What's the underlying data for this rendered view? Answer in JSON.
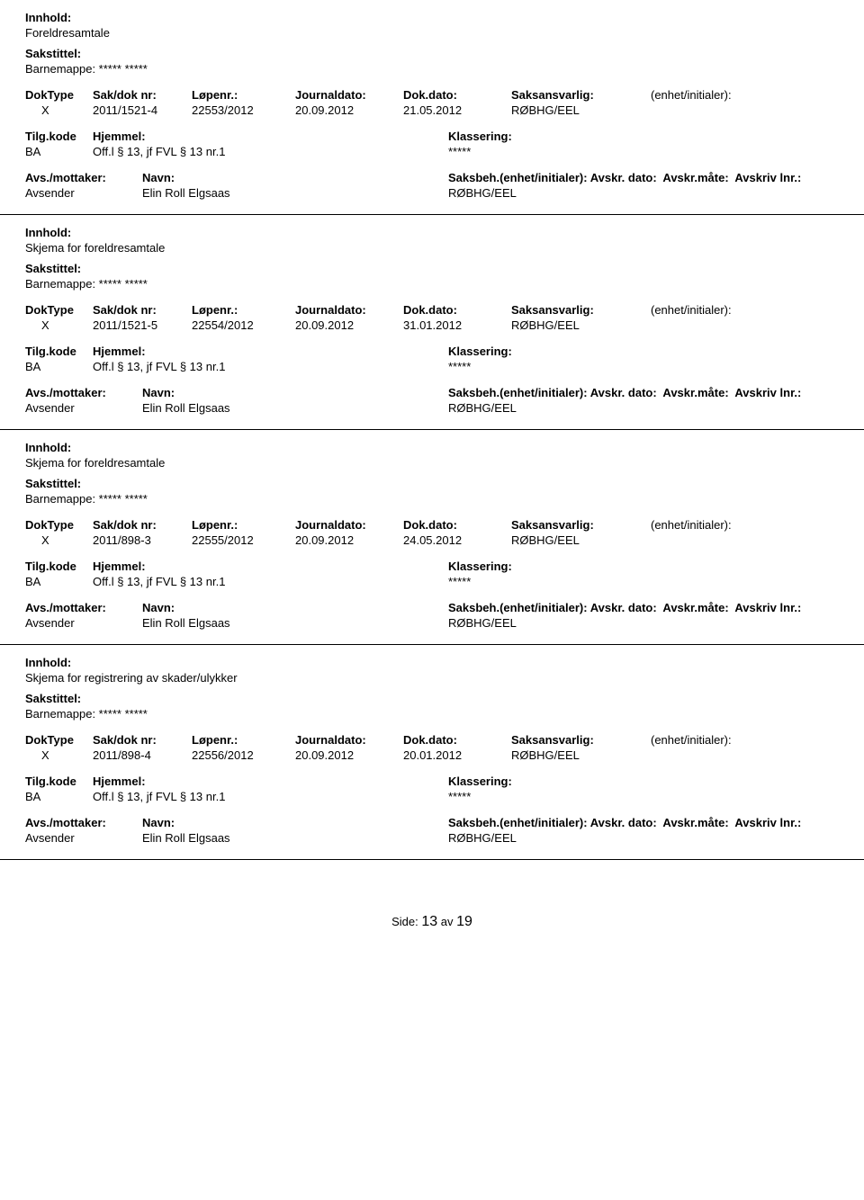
{
  "labels": {
    "innhold": "Innhold:",
    "sakstittel": "Sakstittel:",
    "doktype": "DokType",
    "sakdok": "Sak/dok nr:",
    "lopenr": "Løpenr.:",
    "journaldato": "Journaldato:",
    "dokdato": "Dok.dato:",
    "saksansvarlig": "Saksansvarlig:",
    "enhet": "(enhet/initialer):",
    "tilgkode": "Tilg.kode",
    "hjemmel": "Hjemmel:",
    "klassering": "Klassering:",
    "avsmottaker": "Avs./mottaker:",
    "navn": "Navn:",
    "saksbeh": "Saksbeh.(enhet/initialer):",
    "avskrdato": "Avskr. dato:",
    "avskrmate": "Avskr.måte:",
    "avskrivlnr": "Avskriv lnr.:"
  },
  "records": [
    {
      "innhold": "Foreldresamtale",
      "sakstittel": "Barnemappe: ***** *****",
      "doktype": "X",
      "sakdok": "2011/1521-4",
      "lopenr": "22553/2012",
      "journaldato": "20.09.2012",
      "dokdato": "21.05.2012",
      "saksansvarlig": "RØBHG/EEL",
      "tilgkode": "BA",
      "hjemmel": "Off.l § 13, jf FVL § 13 nr.1",
      "klassering": "*****",
      "avsmottaker": "Avsender",
      "navn": "Elin Roll Elgsaas",
      "saksbeh": "RØBHG/EEL"
    },
    {
      "innhold": "Skjema for foreldresamtale",
      "sakstittel": "Barnemappe: ***** *****",
      "doktype": "X",
      "sakdok": "2011/1521-5",
      "lopenr": "22554/2012",
      "journaldato": "20.09.2012",
      "dokdato": "31.01.2012",
      "saksansvarlig": "RØBHG/EEL",
      "tilgkode": "BA",
      "hjemmel": "Off.l § 13, jf FVL § 13 nr.1",
      "klassering": "*****",
      "avsmottaker": "Avsender",
      "navn": "Elin Roll Elgsaas",
      "saksbeh": "RØBHG/EEL"
    },
    {
      "innhold": "Skjema for foreldresamtale",
      "sakstittel": "Barnemappe: ***** *****",
      "doktype": "X",
      "sakdok": "2011/898-3",
      "lopenr": "22555/2012",
      "journaldato": "20.09.2012",
      "dokdato": "24.05.2012",
      "saksansvarlig": "RØBHG/EEL",
      "tilgkode": "BA",
      "hjemmel": "Off.l § 13, jf FVL § 13 nr.1",
      "klassering": "*****",
      "avsmottaker": "Avsender",
      "navn": "Elin Roll Elgsaas",
      "saksbeh": "RØBHG/EEL"
    },
    {
      "innhold": "Skjema for registrering av skader/ulykker",
      "sakstittel": "Barnemappe: ***** *****",
      "doktype": "X",
      "sakdok": "2011/898-4",
      "lopenr": "22556/2012",
      "journaldato": "20.09.2012",
      "dokdato": "20.01.2012",
      "saksansvarlig": "RØBHG/EEL",
      "tilgkode": "BA",
      "hjemmel": "Off.l § 13, jf FVL § 13 nr.1",
      "klassering": "*****",
      "avsmottaker": "Avsender",
      "navn": "Elin Roll Elgsaas",
      "saksbeh": "RØBHG/EEL"
    }
  ],
  "footer": {
    "label": "Side:",
    "page": "13",
    "of": "av",
    "total": "19"
  }
}
